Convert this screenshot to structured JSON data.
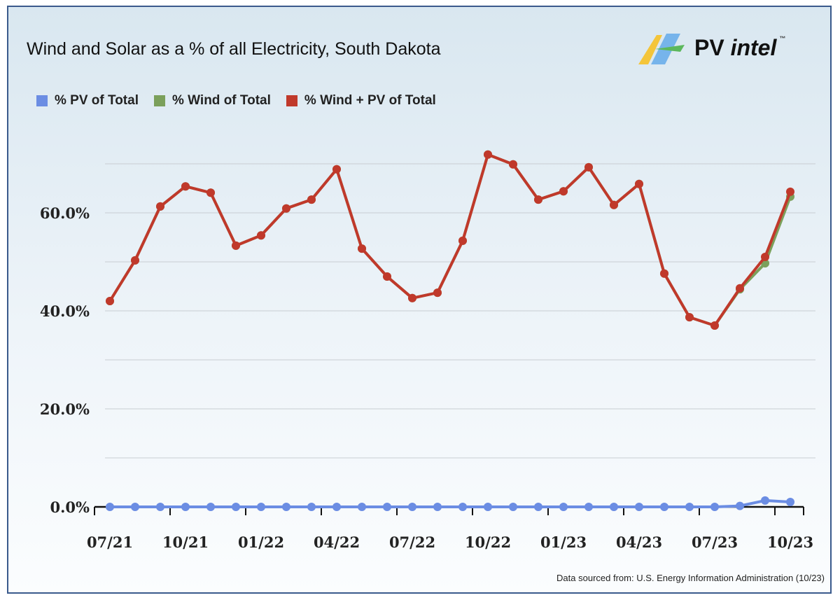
{
  "chart_data": {
    "type": "line",
    "title": "Wind and Solar as a % of all Electricity, South Dakota",
    "x": [
      "07/21",
      "08/21",
      "09/21",
      "10/21",
      "11/21",
      "12/21",
      "01/22",
      "02/22",
      "03/22",
      "04/22",
      "05/22",
      "06/22",
      "07/22",
      "08/22",
      "09/22",
      "10/22",
      "11/22",
      "12/22",
      "01/23",
      "02/23",
      "03/23",
      "04/23",
      "05/23",
      "06/23",
      "07/23",
      "08/23",
      "09/23",
      "10/23"
    ],
    "x_tick_labels": [
      "07/21",
      "10/21",
      "01/22",
      "04/22",
      "07/22",
      "10/22",
      "01/23",
      "04/23",
      "07/23",
      "10/23"
    ],
    "y_tick_labels": [
      "0.0%",
      "20.0%",
      "40.0%",
      "60.0%"
    ],
    "y_ticks": [
      0,
      20,
      40,
      60
    ],
    "ylim": [
      0,
      75
    ],
    "grid_step": 10,
    "grid": true,
    "legend_placement": "top-left",
    "series": [
      {
        "name": "% PV of Total",
        "color": "#6b8de3",
        "values": [
          0,
          0,
          0,
          0,
          0,
          0,
          0,
          0,
          0,
          0,
          0,
          0,
          0,
          0,
          0,
          0,
          0,
          0,
          0,
          0,
          0,
          0,
          0,
          0,
          0,
          0.2,
          1.3,
          1.0
        ]
      },
      {
        "name": "% Wind of Total",
        "color": "#7ba05b",
        "values": [
          42.0,
          50.3,
          61.3,
          65.4,
          64.1,
          53.3,
          55.4,
          60.9,
          62.7,
          68.9,
          52.7,
          47.0,
          42.6,
          43.7,
          54.3,
          71.9,
          69.9,
          62.7,
          64.4,
          69.3,
          61.6,
          65.9,
          47.6,
          38.7,
          37.0,
          44.4,
          49.7,
          63.3
        ]
      },
      {
        "name": "% Wind + PV of Total",
        "color": "#c0392b",
        "values": [
          42.0,
          50.3,
          61.3,
          65.4,
          64.1,
          53.3,
          55.4,
          60.9,
          62.7,
          68.9,
          52.7,
          47.0,
          42.6,
          43.7,
          54.3,
          71.9,
          69.9,
          62.7,
          64.4,
          69.3,
          61.6,
          65.9,
          47.6,
          38.7,
          37.0,
          44.6,
          51.0,
          64.3
        ]
      }
    ]
  },
  "logo": {
    "text_a": "PV",
    "text_b": "intel",
    "tm": "™"
  },
  "source": "Data sourced from: U.S. Energy Information Administration (10/23)"
}
